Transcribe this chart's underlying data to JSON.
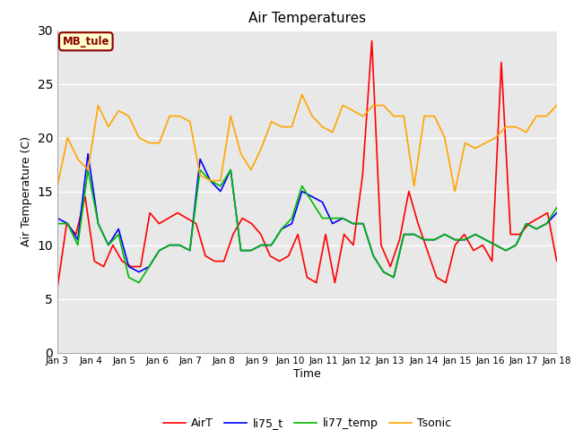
{
  "title": "Air Temperatures",
  "xlabel": "Time",
  "ylabel": "Air Temperature (C)",
  "ylim": [
    0,
    30
  ],
  "yticks": [
    0,
    5,
    10,
    15,
    20,
    25,
    30
  ],
  "plot_bg_color": "#e8e8e8",
  "fig_bg_color": "#ffffff",
  "annotation_text": "MB_tule",
  "annotation_bg": "#ffffcc",
  "annotation_border": "#8b0000",
  "legend_entries": [
    "AirT",
    "li75_t",
    "li77_temp",
    "Tsonic"
  ],
  "series_colors": {
    "AirT": "#ff0000",
    "li75_t": "#0000ff",
    "li77_temp": "#00bb00",
    "Tsonic": "#ffa500"
  },
  "x_labels": [
    "Jan 3",
    "Jan 4",
    "Jan 5",
    "Jan 6",
    "Jan 7",
    "Jan 8",
    "Jan 9",
    "Jan 10",
    "Jan 11",
    "Jan 12",
    "Jan 13",
    "Jan 14",
    "Jan 15",
    "Jan 16",
    "Jan 17",
    "Jan 18"
  ],
  "AirT": [
    6,
    12,
    11,
    14.5,
    8.5,
    8,
    10,
    8.5,
    8,
    8,
    13,
    12,
    12.5,
    13,
    12.5,
    12,
    9,
    8.5,
    8.5,
    11,
    12.5,
    12,
    11,
    9,
    8.5,
    9,
    11,
    7,
    6.5,
    11,
    6.5,
    11,
    10,
    16.5,
    29,
    10,
    8,
    10.5,
    15,
    12,
    9.5,
    7,
    6.5,
    10,
    11,
    9.5,
    10,
    8.5,
    27,
    11,
    11,
    12,
    12.5,
    13,
    8.5
  ],
  "li75_t": [
    12.5,
    12,
    10.5,
    18.5,
    12,
    10,
    11.5,
    8,
    7.5,
    8,
    9.5,
    10,
    10,
    9.5,
    18,
    16,
    15,
    17,
    9.5,
    9.5,
    10,
    10,
    11.5,
    12,
    15,
    14.5,
    14,
    12,
    12.5,
    12,
    12,
    9,
    7.5,
    7,
    11,
    11,
    10.5,
    10.5,
    11,
    10.5,
    10.5,
    11,
    10.5,
    10,
    9.5,
    10,
    12,
    11.5,
    12,
    13
  ],
  "li77_temp": [
    12,
    12,
    10,
    17,
    12,
    10,
    11,
    7,
    6.5,
    8,
    9.5,
    10,
    10,
    9.5,
    17,
    16,
    15.5,
    17,
    9.5,
    9.5,
    10,
    10,
    11.5,
    12.5,
    15.5,
    14,
    12.5,
    12.5,
    12.5,
    12,
    12,
    9,
    7.5,
    7,
    11,
    11,
    10.5,
    10.5,
    11,
    10.5,
    10.5,
    11,
    10.5,
    10,
    9.5,
    10,
    12,
    11.5,
    12,
    13.5
  ],
  "Tsonic": [
    15.5,
    20,
    18,
    17,
    23,
    21,
    22.5,
    22,
    20,
    19.5,
    19.5,
    22,
    22,
    21.5,
    16.5,
    16,
    16,
    22,
    18.5,
    17,
    19,
    21.5,
    21,
    21,
    24,
    22,
    21,
    20.5,
    23,
    22.5,
    22,
    23,
    23,
    22,
    22,
    15.5,
    22,
    22,
    20,
    15,
    19.5,
    19,
    19.5,
    20,
    21,
    21,
    20.5,
    22,
    22,
    23
  ],
  "xlim": [
    0,
    15
  ],
  "linewidth": 1.2
}
